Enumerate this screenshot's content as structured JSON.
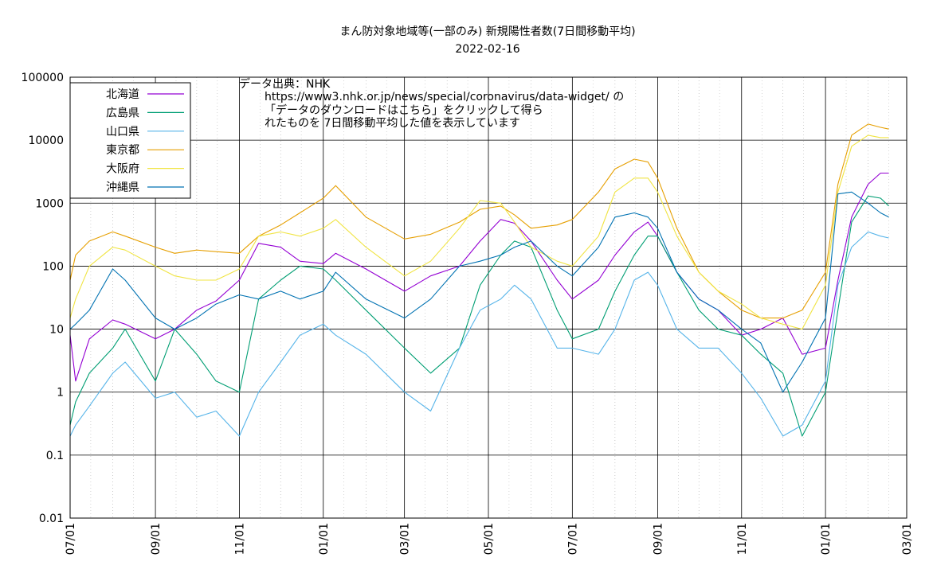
{
  "chart_data": {
    "type": "line",
    "title": "まん防対象地域等(一部のみ) 新規陽性者数(7日間移動平均)",
    "subtitle": "2022-02-16",
    "xlabel": "",
    "ylabel": "",
    "y_scale": "log",
    "ylim": [
      0.01,
      100000
    ],
    "xlim": [
      "2020-07-01",
      "2022-03-01"
    ],
    "grid": true,
    "legend_position": "top-left",
    "y_ticks": [
      "0.01",
      "0.1",
      "1",
      "10",
      "100",
      "1000",
      "10000",
      "100000"
    ],
    "x_ticks": [
      "07/01",
      "09/01",
      "11/01",
      "01/01",
      "03/01",
      "05/01",
      "07/01",
      "09/01",
      "11/01",
      "01/01",
      "03/01"
    ],
    "annotation": [
      "データ出典：NHK",
      "https://www3.nhk.or.jp/news/special/coronavirus/data-widget/ の",
      "「データのダウンロードはこちら」をクリックして得ら",
      "れたものを 7日間移動平均した値を表示しています"
    ],
    "x": [
      "2020-07-01",
      "2020-07-05",
      "2020-07-15",
      "2020-08-01",
      "2020-08-10",
      "2020-09-01",
      "2020-09-15",
      "2020-10-01",
      "2020-10-15",
      "2020-11-01",
      "2020-11-15",
      "2020-12-01",
      "2020-12-15",
      "2021-01-01",
      "2021-01-10",
      "2021-02-01",
      "2021-03-01",
      "2021-03-20",
      "2021-04-10",
      "2021-04-25",
      "2021-05-10",
      "2021-05-20",
      "2021-06-01",
      "2021-06-20",
      "2021-07-01",
      "2021-07-20",
      "2021-08-01",
      "2021-08-15",
      "2021-08-25",
      "2021-09-01",
      "2021-09-15",
      "2021-10-01",
      "2021-10-15",
      "2021-11-01",
      "2021-11-15",
      "2021-12-01",
      "2021-12-15",
      "2022-01-01",
      "2022-01-10",
      "2022-01-20",
      "2022-02-01",
      "2022-02-10",
      "2022-02-16"
    ],
    "series": [
      {
        "name": "北海道",
        "color": "#9400d3",
        "values": [
          8,
          1.5,
          7,
          14,
          12,
          7,
          10,
          20,
          28,
          60,
          230,
          200,
          120,
          110,
          160,
          90,
          40,
          70,
          100,
          250,
          550,
          480,
          250,
          60,
          30,
          60,
          150,
          350,
          500,
          300,
          80,
          30,
          20,
          8,
          10,
          15,
          4,
          5,
          60,
          600,
          2000,
          3000,
          3000
        ]
      },
      {
        "name": "広島県",
        "color": "#009e73",
        "values": [
          0.3,
          0.7,
          2,
          5,
          10,
          1.5,
          10,
          4,
          1.5,
          1,
          30,
          60,
          100,
          90,
          60,
          20,
          5,
          2,
          5,
          50,
          150,
          250,
          200,
          20,
          7,
          10,
          40,
          150,
          300,
          300,
          80,
          20,
          10,
          8,
          4,
          2,
          0.2,
          1,
          20,
          500,
          1300,
          1200,
          900
        ]
      },
      {
        "name": "山口県",
        "color": "#56b4e9",
        "values": [
          0.2,
          0.3,
          0.6,
          2,
          3,
          0.8,
          1,
          0.4,
          0.5,
          0.2,
          1,
          3,
          8,
          12,
          8,
          4,
          1,
          0.5,
          5,
          20,
          30,
          50,
          30,
          5,
          5,
          4,
          10,
          60,
          80,
          50,
          10,
          5,
          5,
          2,
          0.8,
          0.2,
          0.3,
          1.5,
          50,
          200,
          350,
          300,
          280
        ]
      },
      {
        "name": "東京都",
        "color": "#e69f00",
        "values": [
          60,
          150,
          250,
          350,
          300,
          200,
          160,
          180,
          170,
          160,
          300,
          450,
          700,
          1200,
          1900,
          600,
          270,
          320,
          500,
          800,
          900,
          650,
          400,
          450,
          550,
          1500,
          3500,
          5000,
          4500,
          2500,
          400,
          80,
          40,
          20,
          15,
          15,
          20,
          80,
          2000,
          12000,
          18000,
          16000,
          15000
        ]
      },
      {
        "name": "大阪府",
        "color": "#f0e442",
        "values": [
          15,
          30,
          100,
          200,
          180,
          100,
          70,
          60,
          60,
          90,
          300,
          350,
          300,
          400,
          550,
          200,
          70,
          120,
          400,
          1100,
          1000,
          500,
          200,
          120,
          100,
          300,
          1500,
          2500,
          2500,
          1500,
          300,
          80,
          40,
          25,
          15,
          12,
          10,
          50,
          1500,
          8000,
          12000,
          11000,
          11000
        ]
      },
      {
        "name": "沖縄県",
        "color": "#0072b2",
        "values": [
          10,
          12,
          20,
          90,
          60,
          15,
          10,
          15,
          25,
          35,
          30,
          40,
          30,
          40,
          80,
          30,
          15,
          30,
          100,
          120,
          150,
          200,
          250,
          100,
          70,
          200,
          600,
          700,
          600,
          400,
          80,
          30,
          20,
          10,
          6,
          1,
          3,
          15,
          1400,
          1500,
          1000,
          700,
          600
        ]
      }
    ]
  }
}
